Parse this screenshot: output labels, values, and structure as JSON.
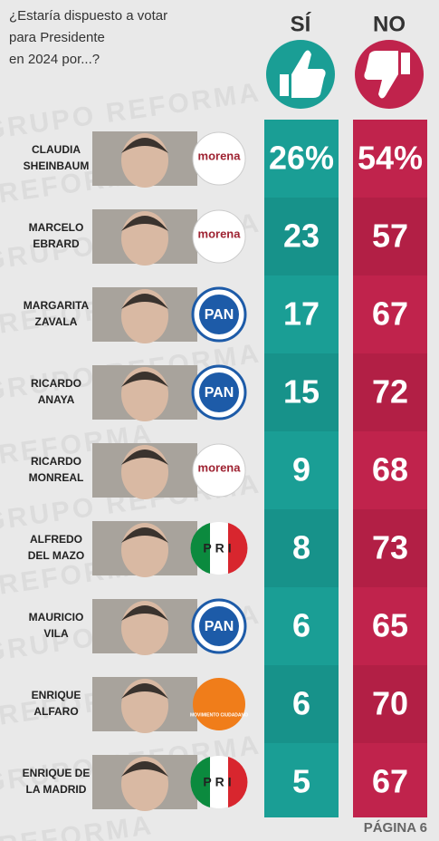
{
  "header": {
    "question": [
      "¿Estaría dispuesto a votar",
      "para Presidente",
      "en 2024 por...?"
    ],
    "yes": "SÍ",
    "no": "NO"
  },
  "watermark": "GRUPO REFORMA",
  "table": {
    "rows": [
      {
        "name": [
          "CLAUDIA",
          "SHEINBAUM"
        ],
        "party": "morena",
        "yes": "26%",
        "no": "54%"
      },
      {
        "name": [
          "MARCELO",
          "EBRARD"
        ],
        "party": "morena",
        "yes": "23",
        "no": "57"
      },
      {
        "name": [
          "MARGARITA",
          "ZAVALA"
        ],
        "party": "PAN",
        "yes": "17",
        "no": "67"
      },
      {
        "name": [
          "RICARDO",
          "ANAYA"
        ],
        "party": "PAN",
        "yes": "15",
        "no": "72"
      },
      {
        "name": [
          "RICARDO",
          "MONREAL"
        ],
        "party": "morena",
        "yes": "9",
        "no": "68"
      },
      {
        "name": [
          "ALFREDO",
          "DEL MAZO"
        ],
        "party": "PRI",
        "yes": "8",
        "no": "73"
      },
      {
        "name": [
          "MAURICIO",
          "VILA"
        ],
        "party": "PAN",
        "yes": "6",
        "no": "65"
      },
      {
        "name": [
          "ENRIQUE",
          "ALFARO"
        ],
        "party": "MOVIMIENTO CIUDADANO",
        "yes": "6",
        "no": "70"
      },
      {
        "name": [
          "ENRIQUE DE",
          "LA MADRID"
        ],
        "party": "PRI",
        "yes": "5",
        "no": "67"
      }
    ]
  },
  "footer": "PÁGINA 6"
}
